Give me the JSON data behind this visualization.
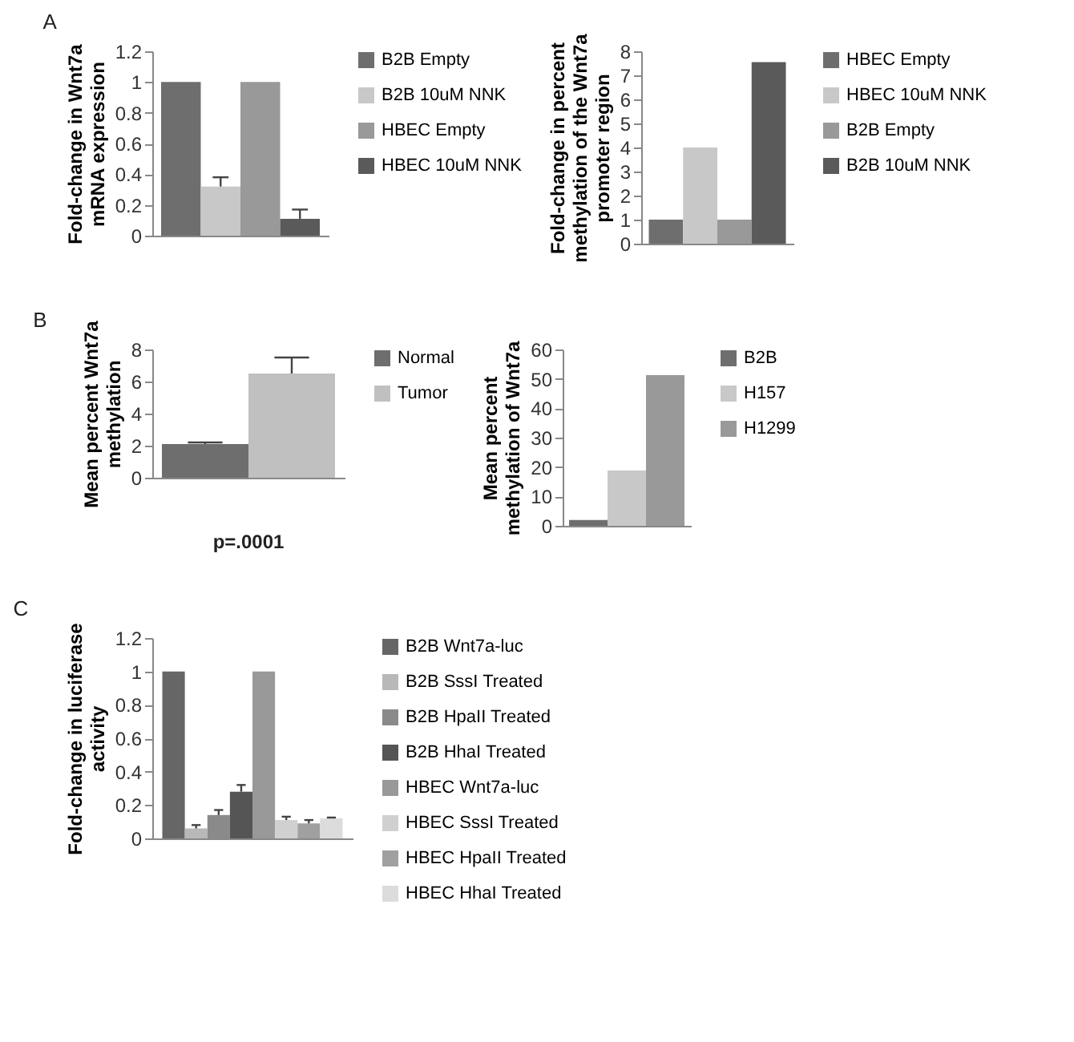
{
  "chart_data": [
    {
      "type": "bar",
      "ylabel": "Fold-change in Wnt7a mRNA expression",
      "annotations": [
        "A"
      ],
      "categories": [
        null
      ],
      "ylim": [
        0,
        1.2
      ],
      "yticks": [
        0,
        0.2,
        0.4,
        0.6,
        0.8,
        1,
        1.2
      ],
      "grid": false,
      "legend": "right",
      "series": [
        {
          "name": "B2B Empty",
          "color": "#6e6e6e",
          "values": [
            1
          ]
        },
        {
          "name": "B2B 10uM NNK",
          "color": "#c8c8c8",
          "values": [
            0.32
          ],
          "errors": [
            [
              0.32,
              0.38
            ]
          ]
        },
        {
          "name": "HBEC Empty",
          "color": "#999999",
          "values": [
            1
          ]
        },
        {
          "name": "HBEC 10uM NNK",
          "color": "#5a5a5a",
          "values": [
            0.11
          ],
          "errors": [
            [
              0.11,
              0.17
            ]
          ]
        }
      ]
    },
    {
      "type": "bar",
      "ylabel": "Fold-change in percent methylation of the Wnt7a promoter region",
      "categories": [
        null
      ],
      "ylim": [
        0,
        8
      ],
      "yticks": [
        0,
        1,
        2,
        3,
        4,
        5,
        6,
        7,
        8
      ],
      "grid": false,
      "legend": "right",
      "series": [
        {
          "name": "HBEC Empty",
          "color": "#6e6e6e",
          "values": [
            1
          ]
        },
        {
          "name": "HBEC 10uM NNK",
          "color": "#c8c8c8",
          "values": [
            4
          ]
        },
        {
          "name": "B2B Empty",
          "color": "#999999",
          "values": [
            1
          ]
        },
        {
          "name": "B2B 10uM NNK",
          "color": "#5a5a5a",
          "values": [
            7.55
          ]
        }
      ]
    },
    {
      "type": "bar",
      "ylabel": "Mean percent Wnt7a methylation",
      "annotations": [
        "B",
        "p=.0001"
      ],
      "categories": [
        null
      ],
      "ylim": [
        0,
        8
      ],
      "yticks": [
        0,
        2,
        4,
        6,
        8
      ],
      "grid": false,
      "legend": "right",
      "series": [
        {
          "name": "Normal",
          "color": "#6e6e6e",
          "values": [
            2.1
          ],
          "errors": [
            [
              2.1,
              2.2
            ]
          ]
        },
        {
          "name": "Tumor",
          "color": "#c0c0c0",
          "values": [
            6.5
          ],
          "errors": [
            [
              6.5,
              7.5
            ]
          ]
        }
      ]
    },
    {
      "type": "bar",
      "ylabel": "Mean percent methylation of Wnt7a",
      "categories": [
        null
      ],
      "ylim": [
        0,
        60
      ],
      "yticks": [
        0,
        10,
        20,
        30,
        40,
        50,
        60
      ],
      "grid": false,
      "legend": "right",
      "series": [
        {
          "name": "B2B",
          "color": "#6e6e6e",
          "values": [
            2
          ]
        },
        {
          "name": "H157",
          "color": "#c8c8c8",
          "values": [
            18.8
          ]
        },
        {
          "name": "H1299",
          "color": "#999999",
          "values": [
            51.3
          ]
        }
      ]
    },
    {
      "type": "bar",
      "ylabel": "Fold-change in luciferase activity",
      "annotations": [
        "C"
      ],
      "categories": [
        null
      ],
      "ylim": [
        0,
        1.2
      ],
      "yticks": [
        0,
        0.2,
        0.4,
        0.6,
        0.8,
        1,
        1.2
      ],
      "grid": false,
      "legend": "right",
      "series": [
        {
          "name": "B2B Wnt7a-luc",
          "color": "#666666",
          "values": [
            1
          ]
        },
        {
          "name": "B2B SssI Treated",
          "color": "#b8b8b8",
          "values": [
            0.06
          ],
          "errors": [
            [
              0.06,
              0.08
            ]
          ]
        },
        {
          "name": "B2B HpaII Treated",
          "color": "#8a8a8a",
          "values": [
            0.14
          ],
          "errors": [
            [
              0.14,
              0.17
            ]
          ]
        },
        {
          "name": "B2B HhaI Treated",
          "color": "#555555",
          "values": [
            0.28
          ],
          "errors": [
            [
              0.28,
              0.32
            ]
          ]
        },
        {
          "name": "HBEC Wnt7a-luc",
          "color": "#999999",
          "values": [
            1
          ]
        },
        {
          "name": "HBEC SssI Treated",
          "color": "#d0d0d0",
          "values": [
            0.11
          ],
          "errors": [
            [
              0.11,
              0.13
            ]
          ]
        },
        {
          "name": "HBEC HpaII Treated",
          "color": "#a0a0a0",
          "values": [
            0.09
          ],
          "errors": [
            [
              0.09,
              0.11
            ]
          ]
        },
        {
          "name": "HBEC HhaI Treated",
          "color": "#dcdcdc",
          "values": [
            0.12
          ],
          "errors": [
            [
              0.12,
              0.125
            ]
          ]
        }
      ]
    }
  ]
}
